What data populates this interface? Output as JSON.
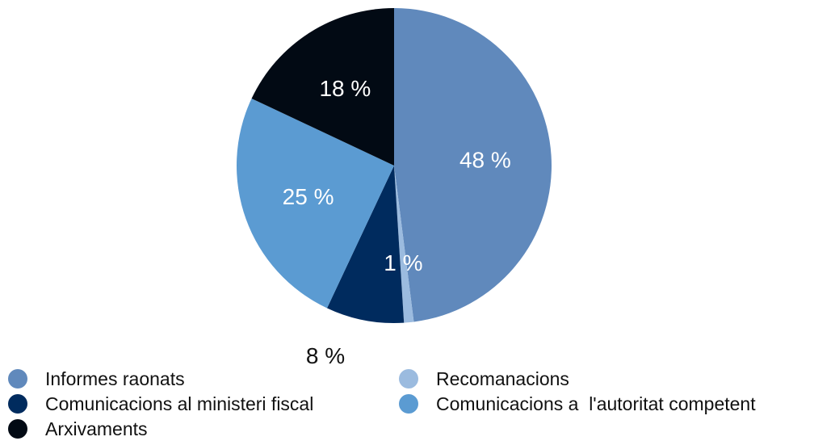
{
  "chart_data": {
    "type": "pie",
    "title": "",
    "slices": [
      {
        "name": "Informes raonats",
        "value": 48,
        "label": "48 %",
        "color": "#6089BC",
        "label_color": "#ffffff"
      },
      {
        "name": "Recomanacions",
        "value": 1,
        "label": "1 %",
        "color": "#9BBBDF",
        "label_color": "#ffffff"
      },
      {
        "name": "Comunicacions al ministeri fiscal",
        "value": 8,
        "label": "8 %",
        "color": "#002B5E",
        "label_color": "#111111"
      },
      {
        "name": "Comunicacions a  l'autoritat competent",
        "value": 25,
        "label": "25 %",
        "color": "#5B9BD2",
        "label_color": "#ffffff"
      },
      {
        "name": "Arxivaments",
        "value": 18,
        "label": "18 %",
        "color": "#020A14",
        "label_color": "#ffffff"
      }
    ],
    "start_angle": "12 o'clock",
    "direction": "clockwise",
    "legend": {
      "placement": "bottom",
      "entries": [
        "Informes raonats",
        "Recomanacions",
        "Comunicacions al ministeri fiscal",
        "Comunicacions a  l'autoritat competent",
        "Arxivaments"
      ]
    }
  }
}
